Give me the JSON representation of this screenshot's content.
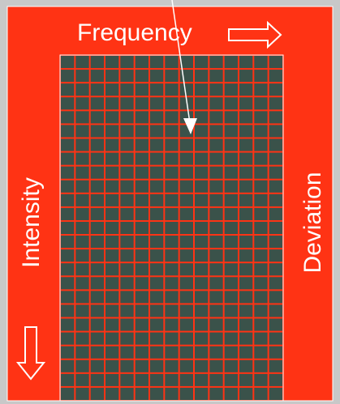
{
  "diagram": {
    "labels": {
      "frequency": "Frequency",
      "intensity": "Intensity",
      "deviation": "Deviation"
    },
    "grid": {
      "columns": 15,
      "rows": 25
    },
    "colors": {
      "background_outer": "#c8c8c8",
      "panel": "#ff3314",
      "grid_cell": "#3a524a",
      "grid_line": "#ff3314",
      "arrow": "#ffffff"
    },
    "icons": {
      "frequency_direction": "arrow-right-outline-icon",
      "intensity_direction": "arrow-down-outline-icon",
      "pointer": "pointer-arrow-icon"
    }
  }
}
